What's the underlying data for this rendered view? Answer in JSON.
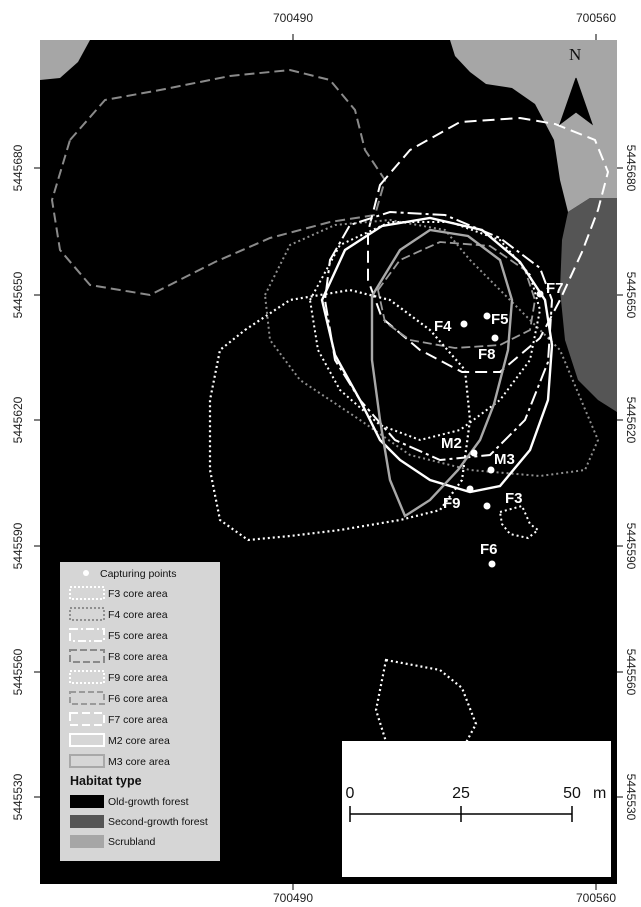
{
  "axes": {
    "top_ticks": [
      "700490",
      "700560"
    ],
    "bottom_ticks": [
      "700490",
      "700560"
    ],
    "left_ticks": [
      "5445680",
      "5445650",
      "5445620",
      "5445590",
      "5445560",
      "5445530"
    ],
    "right_ticks": [
      "5445680",
      "5445650",
      "5445620",
      "5445590",
      "5445560",
      "5445530"
    ]
  },
  "north_arrow": {
    "label": "N"
  },
  "points": [
    {
      "id": "F4",
      "label": "F4"
    },
    {
      "id": "F5",
      "label": "F5"
    },
    {
      "id": "F8",
      "label": "F8"
    },
    {
      "id": "F7",
      "label": "F7"
    },
    {
      "id": "M2",
      "label": "M2"
    },
    {
      "id": "M3",
      "label": "M3"
    },
    {
      "id": "F9",
      "label": "F9"
    },
    {
      "id": "F3",
      "label": "F3"
    },
    {
      "id": "F6",
      "label": "F6"
    }
  ],
  "legend": {
    "capturing_points": "Capturing points",
    "core_areas": [
      {
        "label": "F3 core area"
      },
      {
        "label": "F4 core area"
      },
      {
        "label": "F5 core area"
      },
      {
        "label": "F8 core area"
      },
      {
        "label": "F9 core area"
      },
      {
        "label": "F6 core area"
      },
      {
        "label": "F7 core area"
      },
      {
        "label": "M2 core area"
      },
      {
        "label": "M3 core area"
      }
    ],
    "habitat_title": "Habitat type",
    "habitats": [
      {
        "label": "Old-growth forest",
        "color": "#000000"
      },
      {
        "label": "Second-growth forest",
        "color": "#555555"
      },
      {
        "label": "Scrubland",
        "color": "#a6a6a6"
      }
    ]
  },
  "scale_bar": {
    "labels": [
      "0",
      "25",
      "50"
    ],
    "unit": "m"
  }
}
